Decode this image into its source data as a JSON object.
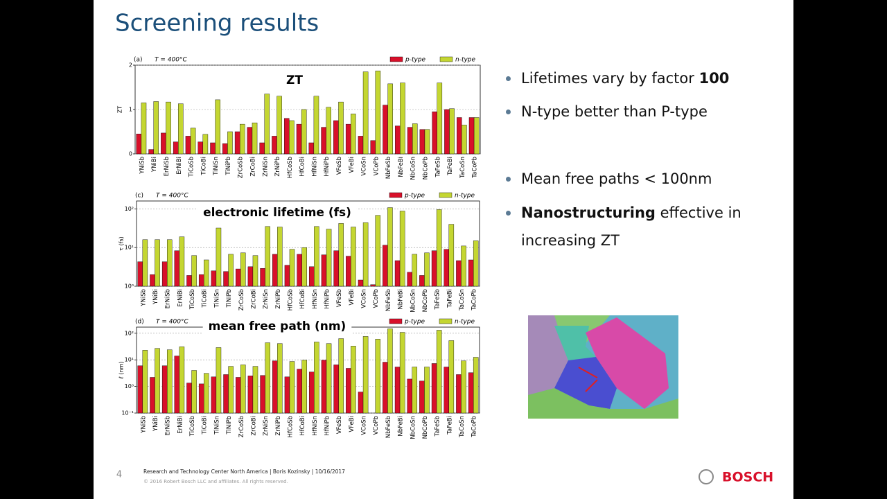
{
  "slide": {
    "title": "Screening results",
    "bullets": [
      [
        {
          "text": "Lifetimes vary by factor "
        },
        {
          "text": "100",
          "bold": true
        }
      ],
      [
        {
          "text": "N-type better than P-type"
        }
      ],
      [
        {
          "text": "Mean free paths < 100nm"
        }
      ],
      [
        {
          "text": "Nanostructuring",
          "bold": true
        },
        {
          "text": " effective in increasing ZT"
        }
      ]
    ],
    "page_number": "4",
    "footer": "Research and Technology Center North America | Boris Kozinsky | 10/16/2017",
    "copyright": "© 2016 Robert Bosch LLC and affiliates. All rights reserved.",
    "logo": "BOSCH"
  },
  "chart_data": [
    {
      "type": "bar",
      "title": "ZT",
      "panel": "(a)",
      "annotation": "T = 400°C",
      "y_label": "ZT",
      "legend": "upper right",
      "log": false,
      "categories": [
        "YNiSb",
        "YNiBi",
        "ErNiSb",
        "ErNiBi",
        "TiCoSb",
        "TiCoBi",
        "TiNiSn",
        "TiNiPb",
        "ZrCoSb",
        "ZrCoBi",
        "ZrNiSn",
        "ZrNiPb",
        "HfCoSb",
        "HfCoBi",
        "HfNiSn",
        "HfNiPb",
        "VFeSb",
        "VFeBi",
        "VCoSn",
        "VCoPb",
        "NbFeSb",
        "NbFeBi",
        "NbCoSn",
        "NbCoPb",
        "TaFeSb",
        "TaFeBi",
        "TaCoSn",
        "TaCoPb"
      ],
      "series": [
        {
          "name": "p-type",
          "color": "#d8102a",
          "values": [
            0.45,
            0.1,
            0.47,
            0.27,
            0.4,
            0.27,
            0.25,
            0.23,
            0.5,
            0.6,
            0.25,
            0.4,
            0.8,
            0.67,
            0.25,
            0.6,
            0.75,
            0.67,
            0.4,
            0.3,
            1.1,
            0.63,
            0.6,
            0.55,
            0.95,
            1.0,
            0.82,
            0.82
          ]
        },
        {
          "name": "n-type",
          "color": "#c4d631",
          "values": [
            1.15,
            1.18,
            1.17,
            1.13,
            0.58,
            0.44,
            1.22,
            0.5,
            0.67,
            0.7,
            1.35,
            1.3,
            0.75,
            1.0,
            1.3,
            1.05,
            1.17,
            0.9,
            1.85,
            1.87,
            1.58,
            1.6,
            0.68,
            0.55,
            1.6,
            1.02,
            0.65,
            0.82
          ]
        }
      ],
      "ylim": [
        0,
        2
      ],
      "yticks": [
        0,
        1,
        2
      ],
      "grid": true
    },
    {
      "type": "bar",
      "title": "electronic lifetime (fs)",
      "panel": "(c)",
      "annotation": "T = 400°C",
      "y_label": "τ (fs)",
      "legend": "upper right",
      "log": true,
      "categories": [
        "YNiSb",
        "YNiBi",
        "ErNiSb",
        "ErNiBi",
        "TiCoSb",
        "TiCoBi",
        "TiNiSn",
        "TiNiPb",
        "ZrCoSb",
        "ZrCoBi",
        "ZrNiSn",
        "ZrNiPb",
        "HfCoSb",
        "HfCoBi",
        "HfNiSn",
        "HfNiPb",
        "VFeSb",
        "VFeBi",
        "VCoSn",
        "VCoPb",
        "NbFeSb",
        "NbFeBi",
        "NbCoSn",
        "NbCoPb",
        "TaFeSb",
        "TaFeBi",
        "TaCoSn",
        "TaCoPb"
      ],
      "series": [
        {
          "name": "p-type",
          "color": "#d8102a",
          "values": [
            4.3,
            2,
            4.3,
            8.3,
            1.9,
            2,
            2.5,
            2.4,
            2.8,
            3.2,
            2.9,
            6.7,
            3.5,
            6.7,
            3.2,
            6.5,
            8.3,
            6,
            1.45,
            1.1,
            11.5,
            4.6,
            2.3,
            1.9,
            8.3,
            9,
            4.6,
            4.8
          ]
        },
        {
          "name": "n-type",
          "color": "#c4d631",
          "values": [
            16,
            16,
            16,
            19,
            6.2,
            4.8,
            32,
            6.7,
            7.3,
            6.2,
            35,
            34,
            9,
            10,
            35,
            30,
            42,
            34,
            44,
            68,
            108,
            88,
            6.7,
            7.3,
            96,
            40,
            11,
            15
          ]
        }
      ],
      "ylim": [
        1,
        160
      ],
      "yticks": [
        {
          "value": 1,
          "label": "10⁰"
        },
        {
          "value": 10,
          "label": "10¹"
        },
        {
          "value": 100,
          "label": "10²"
        }
      ],
      "grid": true
    },
    {
      "type": "bar",
      "title": "mean free path (nm)",
      "panel": "(d)",
      "annotation": "T = 400°C",
      "y_label": "ℓ (nm)",
      "legend": "upper right",
      "log": true,
      "categories": [
        "YNiSb",
        "YNiBi",
        "ErNiSb",
        "ErNiBi",
        "TiCoSb",
        "TiCoBi",
        "TiNiSn",
        "TiNiPb",
        "ZrCoSb",
        "ZrCoBi",
        "ZrNiSn",
        "ZrNiPb",
        "HfCoSb",
        "HfCoBi",
        "HfNiSn",
        "HfNiPb",
        "VFeSb",
        "VFeBi",
        "VCoSn",
        "VCoPb",
        "NbFeSb",
        "NbFeBi",
        "NbCoSn",
        "NbCoPb",
        "TaFeSb",
        "TaFeBi",
        "TaCoSn",
        "TaCoPb"
      ],
      "series": [
        {
          "name": "p-type",
          "color": "#d8102a",
          "values": [
            6,
            2.2,
            6,
            14,
            1.35,
            1.25,
            2.3,
            2.8,
            2.2,
            2.5,
            2.6,
            9.2,
            2.3,
            4.5,
            3.5,
            9.8,
            6.5,
            4.8,
            0.62,
            null,
            8.2,
            5.4,
            1.9,
            1.6,
            7.3,
            5.4,
            2.8,
            3.3
          ]
        },
        {
          "name": "n-type",
          "color": "#c4d631",
          "values": [
            23,
            27,
            24,
            31,
            4,
            3.1,
            29,
            5.7,
            6.5,
            5.7,
            44,
            41,
            8.7,
            9.8,
            47,
            41,
            63,
            33,
            76,
            60,
            147,
            108,
            5.4,
            5.4,
            130,
            53,
            9.2,
            12.5
          ]
        }
      ],
      "ylim": [
        0.1,
        170
      ],
      "yticks": [
        {
          "value": 0.1,
          "label": "10⁻¹"
        },
        {
          "value": 1,
          "label": "10⁰"
        },
        {
          "value": 10,
          "label": "10¹"
        },
        {
          "value": 100,
          "label": "10²"
        }
      ],
      "grid": true
    }
  ]
}
